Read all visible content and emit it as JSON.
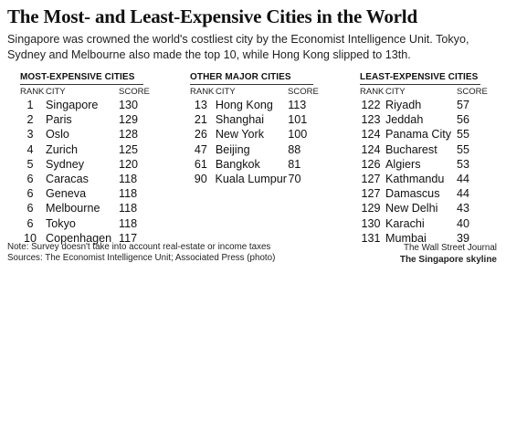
{
  "title": "The Most- and Least-Expensive Cities in the World",
  "subtitle": "Singapore was crowned the world's costliest city by the Economist Intelligence Unit. Tokyo, Sydney and Melbourne also made the top 10, while Hong Kong slipped to 13th.",
  "columns": {
    "rank": "RANK",
    "city": "CITY",
    "score": "SCORE"
  },
  "tables": [
    {
      "heading": "MOST-EXPENSIVE CITIES",
      "rows": [
        {
          "rank": "1",
          "city": "Singapore",
          "score": "130"
        },
        {
          "rank": "2",
          "city": "Paris",
          "score": "129"
        },
        {
          "rank": "3",
          "city": "Oslo",
          "score": "128"
        },
        {
          "rank": "4",
          "city": "Zurich",
          "score": "125"
        },
        {
          "rank": "5",
          "city": "Sydney",
          "score": "120"
        },
        {
          "rank": "6",
          "city": "Caracas",
          "score": "118"
        },
        {
          "rank": "6",
          "city": "Geneva",
          "score": "118"
        },
        {
          "rank": "6",
          "city": "Melbourne",
          "score": "118"
        },
        {
          "rank": "6",
          "city": "Tokyo",
          "score": "118"
        },
        {
          "rank": "10",
          "city": "Copenhagen",
          "score": "117"
        }
      ]
    },
    {
      "heading": "OTHER MAJOR CITIES",
      "rows": [
        {
          "rank": "13",
          "city": "Hong Kong",
          "score": "113"
        },
        {
          "rank": "21",
          "city": "Shanghai",
          "score": "101"
        },
        {
          "rank": "26",
          "city": "New York",
          "score": "100"
        },
        {
          "rank": "47",
          "city": "Beijing",
          "score": "88"
        },
        {
          "rank": "61",
          "city": "Bangkok",
          "score": "81"
        },
        {
          "rank": "90",
          "city": "Kuala Lumpur",
          "score": "70"
        }
      ]
    },
    {
      "heading": "LEAST-EXPENSIVE CITIES",
      "rows": [
        {
          "rank": "122",
          "city": "Riyadh",
          "score": "57"
        },
        {
          "rank": "123",
          "city": "Jeddah",
          "score": "56"
        },
        {
          "rank": "124",
          "city": "Panama City",
          "score": "55"
        },
        {
          "rank": "124",
          "city": "Bucharest",
          "score": "55"
        },
        {
          "rank": "126",
          "city": "Algiers",
          "score": "53"
        },
        {
          "rank": "127",
          "city": "Kathmandu",
          "score": "44"
        },
        {
          "rank": "127",
          "city": "Damascus",
          "score": "44"
        },
        {
          "rank": "129",
          "city": "New Delhi",
          "score": "43"
        },
        {
          "rank": "130",
          "city": "Karachi",
          "score": "40"
        },
        {
          "rank": "131",
          "city": "Mumbai",
          "score": "39"
        }
      ]
    }
  ],
  "note_line1": "Note: Survey doesn't take into account real-estate or income taxes",
  "note_line2": "Sources: The Economist Intelligence Unit; Associated Press (photo)",
  "credit_source": "The Wall Street Journal",
  "credit_caption": "The Singapore skyline"
}
